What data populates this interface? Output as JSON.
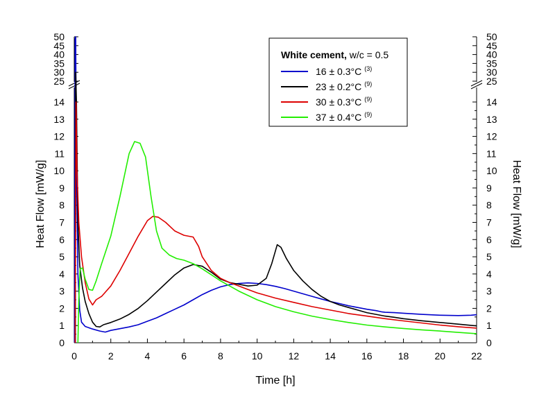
{
  "chart_data": {
    "type": "line",
    "xlabel": "Time  [h]",
    "ylabel_left": "Heat Flow  [mW/g]",
    "ylabel_right": "Heat Flow  [mW/g]",
    "xlim": [
      0,
      22
    ],
    "x_ticks": [
      0,
      2,
      4,
      6,
      8,
      10,
      12,
      14,
      16,
      18,
      20,
      22
    ],
    "ylim_lower": [
      0,
      15
    ],
    "y_ticks_lower": [
      0,
      1,
      2,
      3,
      4,
      5,
      6,
      7,
      8,
      9,
      10,
      11,
      12,
      13,
      14
    ],
    "ylim_upper": [
      25,
      50
    ],
    "y_ticks_upper": [
      25,
      30,
      35,
      40,
      45,
      50
    ],
    "axis_break": true,
    "grid": false,
    "legend_placement": "top-right",
    "legend_title_bold": "White cement,",
    "legend_title_rest": " w/c = 0.5",
    "series": [
      {
        "name": "16 ± 0.3°C",
        "ref": "(3)",
        "color": "#0000cc",
        "points": [
          [
            0.02,
            0
          ],
          [
            0.05,
            49
          ],
          [
            0.08,
            50
          ],
          [
            0.1,
            15
          ],
          [
            0.14,
            9
          ],
          [
            0.2,
            4
          ],
          [
            0.3,
            1.9
          ],
          [
            0.4,
            1.2
          ],
          [
            0.6,
            0.95
          ],
          [
            1.0,
            0.8
          ],
          [
            1.4,
            0.68
          ],
          [
            1.7,
            0.62
          ],
          [
            2.0,
            0.72
          ],
          [
            2.5,
            0.82
          ],
          [
            3.0,
            0.92
          ],
          [
            3.5,
            1.05
          ],
          [
            4.0,
            1.25
          ],
          [
            4.5,
            1.45
          ],
          [
            5.0,
            1.7
          ],
          [
            5.5,
            1.95
          ],
          [
            6.0,
            2.2
          ],
          [
            6.5,
            2.5
          ],
          [
            7.0,
            2.8
          ],
          [
            7.5,
            3.05
          ],
          [
            8.0,
            3.25
          ],
          [
            8.5,
            3.38
          ],
          [
            9.0,
            3.45
          ],
          [
            9.5,
            3.48
          ],
          [
            10.0,
            3.45
          ],
          [
            10.5,
            3.38
          ],
          [
            11.0,
            3.28
          ],
          [
            11.5,
            3.15
          ],
          [
            12.0,
            3.0
          ],
          [
            12.5,
            2.85
          ],
          [
            13.0,
            2.7
          ],
          [
            13.5,
            2.55
          ],
          [
            14.0,
            2.4
          ],
          [
            14.5,
            2.28
          ],
          [
            15.0,
            2.15
          ],
          [
            15.5,
            2.05
          ],
          [
            16.0,
            1.95
          ],
          [
            16.5,
            1.87
          ],
          [
            16.8,
            1.8
          ],
          [
            17.0,
            1.77
          ],
          [
            17.5,
            1.75
          ],
          [
            18.0,
            1.72
          ],
          [
            19.0,
            1.65
          ],
          [
            20.0,
            1.6
          ],
          [
            21.0,
            1.58
          ],
          [
            21.7,
            1.6
          ],
          [
            22.0,
            1.63
          ]
        ]
      },
      {
        "name": "23 ± 0.2°C",
        "ref": "(9)",
        "color": "#000000",
        "points": [
          [
            0.06,
            0
          ],
          [
            0.08,
            30
          ],
          [
            0.12,
            14
          ],
          [
            0.2,
            7
          ],
          [
            0.3,
            4.5
          ],
          [
            0.45,
            3.2
          ],
          [
            0.6,
            2.4
          ],
          [
            0.8,
            1.7
          ],
          [
            1.0,
            1.2
          ],
          [
            1.2,
            0.95
          ],
          [
            1.4,
            0.92
          ],
          [
            1.6,
            1.05
          ],
          [
            2.0,
            1.18
          ],
          [
            2.5,
            1.38
          ],
          [
            3.0,
            1.65
          ],
          [
            3.5,
            2.0
          ],
          [
            4.0,
            2.45
          ],
          [
            4.5,
            2.95
          ],
          [
            5.0,
            3.45
          ],
          [
            5.5,
            3.95
          ],
          [
            6.0,
            4.35
          ],
          [
            6.5,
            4.55
          ],
          [
            7.0,
            4.45
          ],
          [
            7.5,
            4.1
          ],
          [
            8.0,
            3.7
          ],
          [
            8.5,
            3.5
          ],
          [
            9.0,
            3.4
          ],
          [
            9.5,
            3.3
          ],
          [
            10.0,
            3.35
          ],
          [
            10.5,
            3.75
          ],
          [
            10.8,
            4.6
          ],
          [
            11.1,
            5.7
          ],
          [
            11.3,
            5.55
          ],
          [
            11.6,
            4.9
          ],
          [
            12.0,
            4.2
          ],
          [
            12.5,
            3.6
          ],
          [
            13.0,
            3.1
          ],
          [
            13.5,
            2.7
          ],
          [
            14.0,
            2.4
          ],
          [
            14.5,
            2.2
          ],
          [
            15.0,
            2.05
          ],
          [
            15.5,
            1.9
          ],
          [
            16.0,
            1.75
          ],
          [
            16.5,
            1.65
          ],
          [
            17.0,
            1.55
          ],
          [
            17.5,
            1.48
          ],
          [
            18.0,
            1.4
          ],
          [
            19.0,
            1.28
          ],
          [
            20.0,
            1.18
          ],
          [
            21.0,
            1.08
          ],
          [
            22.0,
            0.98
          ]
        ]
      },
      {
        "name": "30 ± 0.3°C",
        "ref": "(9)",
        "color": "#dd0000",
        "points": [
          [
            0.05,
            0
          ],
          [
            0.1,
            14
          ],
          [
            0.15,
            10
          ],
          [
            0.25,
            7
          ],
          [
            0.4,
            5.0
          ],
          [
            0.6,
            3.5
          ],
          [
            0.8,
            2.55
          ],
          [
            1.0,
            2.2
          ],
          [
            1.2,
            2.5
          ],
          [
            1.5,
            2.7
          ],
          [
            2.0,
            3.3
          ],
          [
            2.5,
            4.2
          ],
          [
            3.0,
            5.2
          ],
          [
            3.5,
            6.2
          ],
          [
            4.0,
            7.1
          ],
          [
            4.3,
            7.35
          ],
          [
            4.6,
            7.3
          ],
          [
            5.0,
            7.0
          ],
          [
            5.5,
            6.5
          ],
          [
            6.0,
            6.25
          ],
          [
            6.5,
            6.15
          ],
          [
            6.8,
            5.6
          ],
          [
            7.0,
            5.0
          ],
          [
            7.5,
            4.2
          ],
          [
            8.0,
            3.75
          ],
          [
            8.5,
            3.5
          ],
          [
            9.0,
            3.3
          ],
          [
            9.5,
            3.1
          ],
          [
            10.0,
            2.9
          ],
          [
            11.0,
            2.6
          ],
          [
            12.0,
            2.35
          ],
          [
            13.0,
            2.1
          ],
          [
            14.0,
            1.9
          ],
          [
            15.0,
            1.7
          ],
          [
            16.0,
            1.55
          ],
          [
            17.0,
            1.4
          ],
          [
            18.0,
            1.27
          ],
          [
            19.0,
            1.15
          ],
          [
            20.0,
            1.03
          ],
          [
            21.0,
            0.93
          ],
          [
            22.0,
            0.85
          ]
        ]
      },
      {
        "name": "37 ± 0.4°C",
        "ref": "(9)",
        "color": "#22ee00",
        "points": [
          [
            0.2,
            0
          ],
          [
            0.25,
            2.5
          ],
          [
            0.32,
            4.3
          ],
          [
            0.45,
            4.35
          ],
          [
            0.6,
            3.7
          ],
          [
            0.8,
            3.1
          ],
          [
            1.0,
            3.05
          ],
          [
            1.2,
            3.6
          ],
          [
            1.5,
            4.6
          ],
          [
            2.0,
            6.2
          ],
          [
            2.5,
            8.5
          ],
          [
            3.0,
            11.0
          ],
          [
            3.3,
            11.7
          ],
          [
            3.6,
            11.6
          ],
          [
            3.9,
            10.8
          ],
          [
            4.2,
            8.5
          ],
          [
            4.5,
            6.5
          ],
          [
            4.8,
            5.5
          ],
          [
            5.2,
            5.1
          ],
          [
            5.6,
            4.9
          ],
          [
            6.0,
            4.8
          ],
          [
            6.5,
            4.6
          ],
          [
            7.0,
            4.3
          ],
          [
            7.5,
            3.95
          ],
          [
            8.0,
            3.6
          ],
          [
            9.0,
            3.0
          ],
          [
            10.0,
            2.5
          ],
          [
            11.0,
            2.1
          ],
          [
            12.0,
            1.8
          ],
          [
            13.0,
            1.55
          ],
          [
            14.0,
            1.35
          ],
          [
            15.0,
            1.18
          ],
          [
            16.0,
            1.03
          ],
          [
            17.0,
            0.92
          ],
          [
            18.0,
            0.83
          ],
          [
            19.0,
            0.75
          ],
          [
            20.0,
            0.68
          ],
          [
            21.0,
            0.6
          ],
          [
            22.0,
            0.53
          ]
        ]
      }
    ]
  }
}
